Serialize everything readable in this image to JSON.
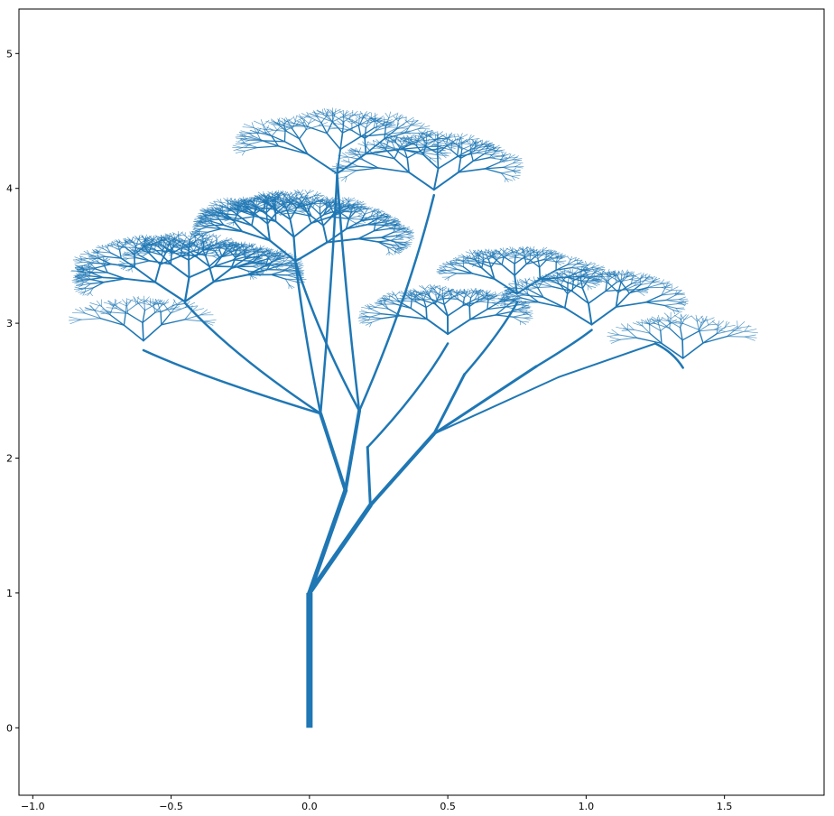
{
  "chart_data": {
    "type": "line",
    "title": "",
    "xlabel": "",
    "ylabel": "",
    "xlim": [
      -1.05,
      1.86
    ],
    "ylim": [
      -0.5,
      5.33
    ],
    "grid": false,
    "legend": "none",
    "color": "#1f77b4",
    "x_ticks": [
      -1.0,
      -0.5,
      0.0,
      0.5,
      1.0,
      1.5
    ],
    "x_tick_labels": [
      "−1.0",
      "−0.5",
      "0.0",
      "0.5",
      "1.0",
      "1.5"
    ],
    "y_ticks": [
      0,
      1,
      2,
      3,
      4,
      5
    ],
    "y_tick_labels": [
      "0",
      "1",
      "2",
      "3",
      "4",
      "5"
    ],
    "segments": [
      {
        "name": "trunk",
        "x": [
          0.0,
          0.0
        ],
        "y": [
          0.0,
          1.0
        ],
        "width": 7
      },
      {
        "name": "branch-left-main",
        "x": [
          0.0,
          0.13
        ],
        "y": [
          1.0,
          1.76
        ],
        "width": 5
      },
      {
        "name": "branch-right-main",
        "x": [
          0.0,
          0.22
        ],
        "y": [
          1.0,
          1.65
        ],
        "width": 5
      },
      {
        "name": "branch-l1",
        "x": [
          0.13,
          0.04
        ],
        "y": [
          1.76,
          2.33
        ],
        "width": 4
      },
      {
        "name": "branch-l2",
        "x": [
          0.13,
          0.18
        ],
        "y": [
          1.76,
          2.35
        ],
        "width": 4
      },
      {
        "name": "branch-r1",
        "x": [
          0.22,
          0.45
        ],
        "y": [
          1.65,
          2.18
        ],
        "width": 4
      },
      {
        "name": "branch-r2",
        "x": [
          0.22,
          0.21
        ],
        "y": [
          1.65,
          2.08
        ],
        "width": 3
      },
      {
        "name": "branch-r1a",
        "x": [
          0.45,
          0.56
        ],
        "y": [
          2.18,
          2.62
        ],
        "width": 3
      },
      {
        "name": "branch-r1b",
        "x": [
          0.45,
          0.82
        ],
        "y": [
          2.18,
          2.68
        ],
        "width": 3
      },
      {
        "name": "branch-r1c",
        "x": [
          0.45,
          0.9
        ],
        "y": [
          2.18,
          2.6
        ],
        "width": 2
      },
      {
        "name": "branch-r1d",
        "x": [
          0.9,
          1.25
        ],
        "y": [
          2.6,
          2.85
        ],
        "width": 2
      }
    ],
    "crowns": [
      {
        "name": "crown-far-right",
        "x": 1.35,
        "y": 2.92,
        "spread": 0.3,
        "depth": 5
      },
      {
        "name": "crown-right",
        "x": 1.02,
        "y": 3.2,
        "spread": 0.35,
        "depth": 6
      },
      {
        "name": "crown-mid-right",
        "x": 0.75,
        "y": 3.4,
        "spread": 0.3,
        "depth": 6
      },
      {
        "name": "crown-center-low",
        "x": 0.5,
        "y": 3.1,
        "spread": 0.3,
        "depth": 6
      },
      {
        "name": "crown-center-top",
        "x": 0.1,
        "y": 4.35,
        "spread": 0.4,
        "depth": 6
      },
      {
        "name": "crown-top-right",
        "x": 0.45,
        "y": 4.2,
        "spread": 0.35,
        "depth": 6
      },
      {
        "name": "crown-center",
        "x": -0.05,
        "y": 3.7,
        "spread": 0.4,
        "depth": 7
      },
      {
        "name": "crown-left",
        "x": -0.45,
        "y": 3.4,
        "spread": 0.4,
        "depth": 7
      },
      {
        "name": "crown-far-left",
        "x": -0.6,
        "y": 3.05,
        "spread": 0.3,
        "depth": 5
      }
    ]
  }
}
